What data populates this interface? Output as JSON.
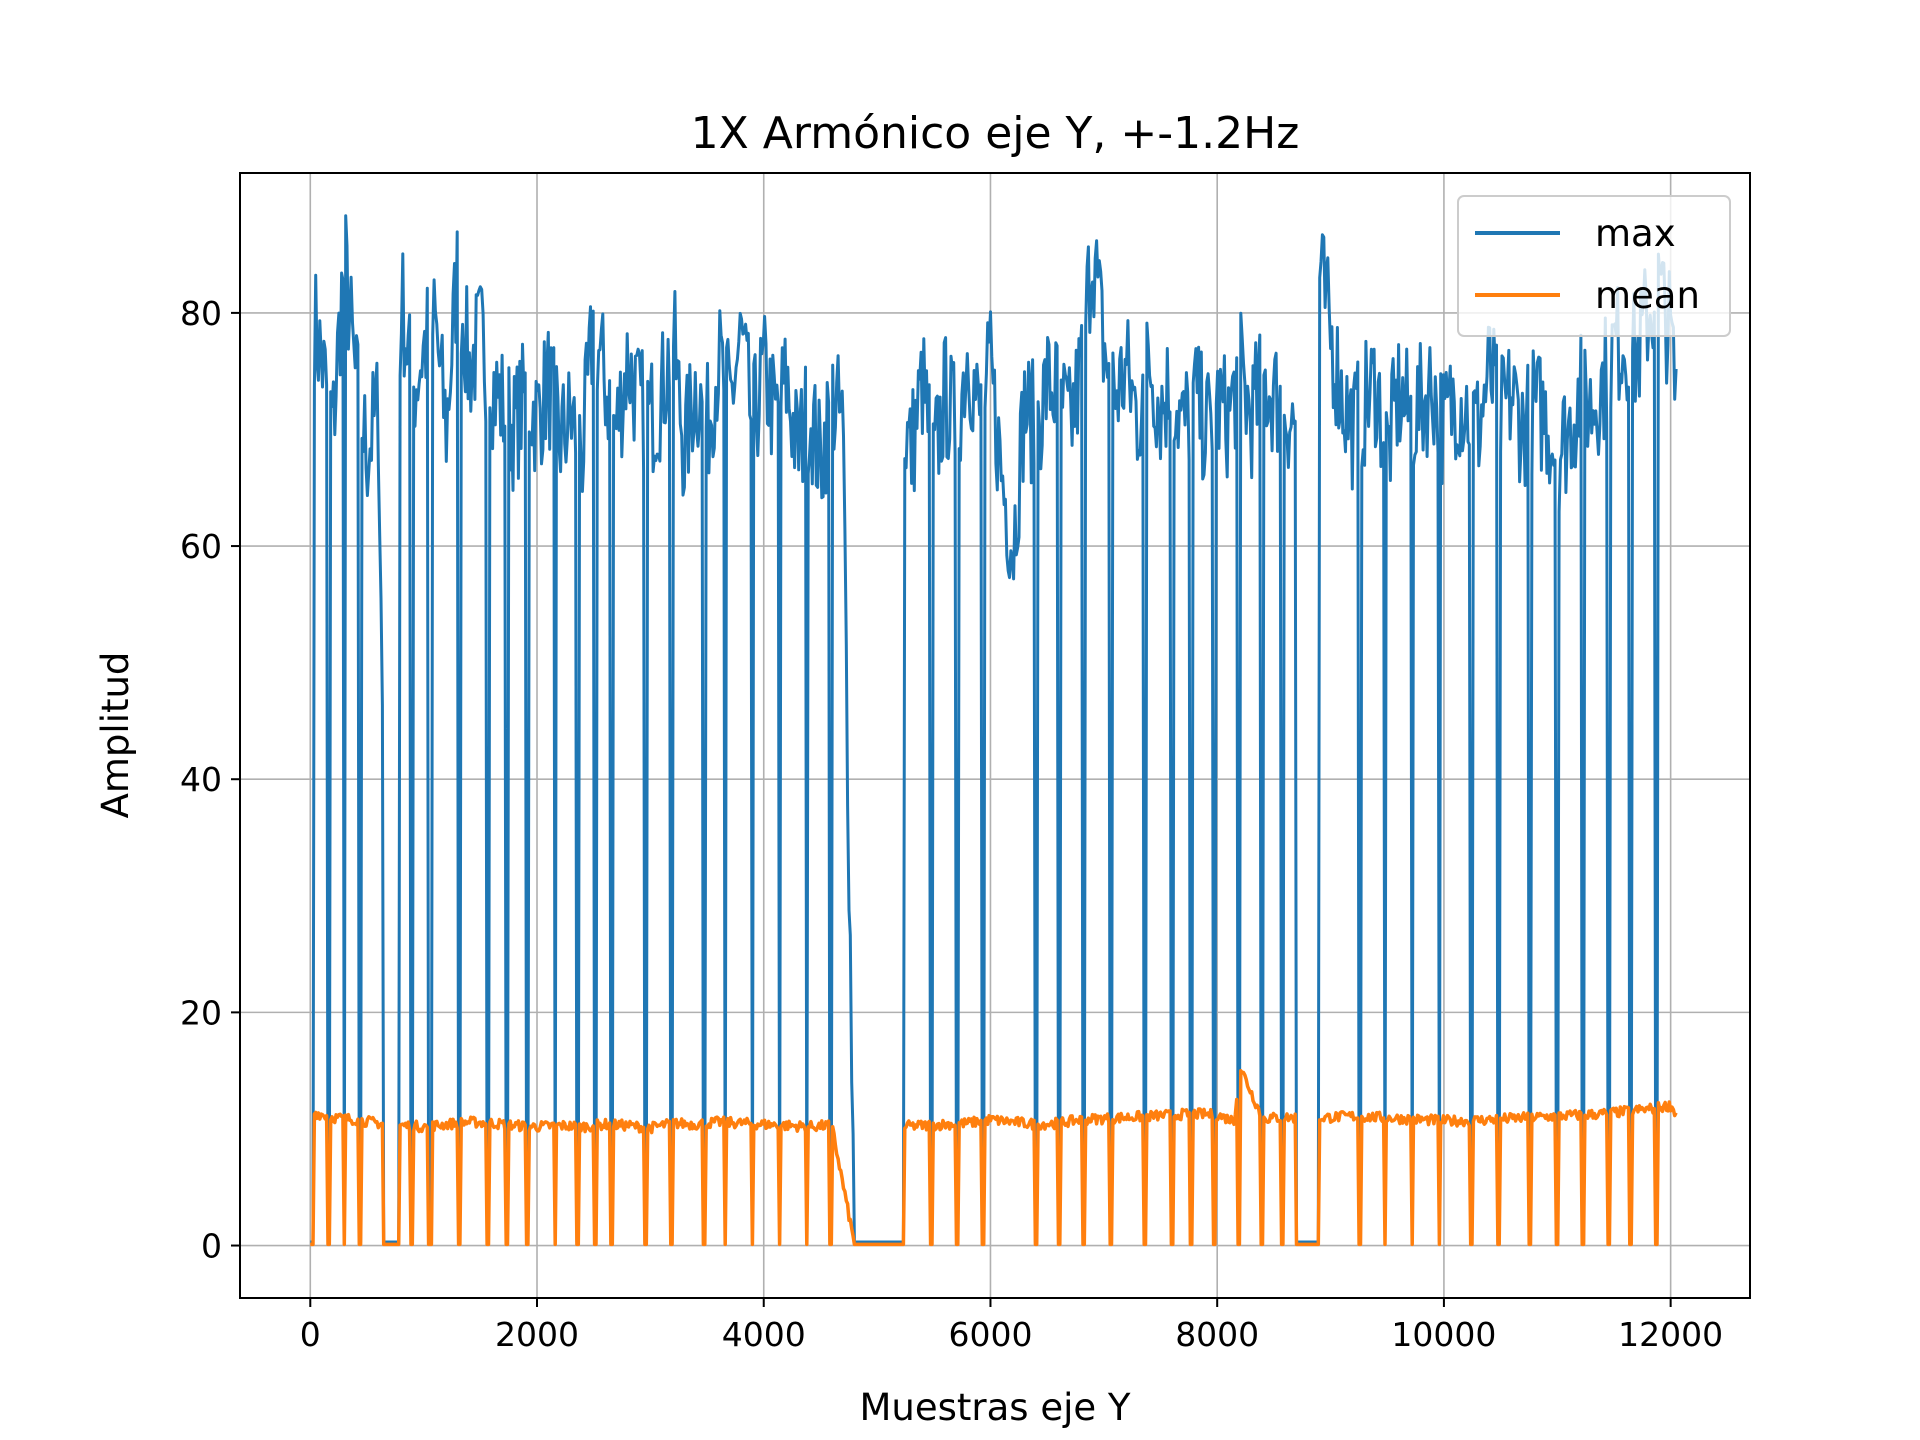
{
  "chart_data": {
    "type": "line",
    "title": "1X Armónico eje Y, +-1.2Hz",
    "xlabel": "Muestras eje Y",
    "ylabel": "Amplitud",
    "xlim": [
      -620,
      12700
    ],
    "ylim": [
      -4.5,
      92
    ],
    "xticks": [
      0,
      2000,
      4000,
      6000,
      8000,
      10000,
      12000
    ],
    "yticks": [
      0,
      20,
      40,
      60,
      80
    ],
    "grid": true,
    "legend": "top-right",
    "series": [
      {
        "name": "max",
        "color": "#1f77b4",
        "x": [
          0,
          100,
          200,
          300,
          400,
          500,
          600,
          700,
          800,
          900,
          1000,
          1100,
          1200,
          1300,
          1400,
          1500,
          1600,
          1700,
          1800,
          1900,
          2000,
          2100,
          2200,
          2300,
          2400,
          2500,
          2600,
          2700,
          2800,
          2900,
          3000,
          3100,
          3200,
          3300,
          3400,
          3500,
          3600,
          3700,
          3800,
          3900,
          4000,
          4100,
          4200,
          4300,
          4400,
          4500,
          4600,
          4700,
          4800,
          4900,
          5000,
          5100,
          5200,
          5300,
          5400,
          5500,
          5600,
          5700,
          5800,
          5900,
          6000,
          6100,
          6200,
          6300,
          6400,
          6500,
          6600,
          6700,
          6800,
          6900,
          7000,
          7100,
          7200,
          7300,
          7400,
          7500,
          7600,
          7700,
          7800,
          7900,
          8000,
          8100,
          8200,
          8300,
          8400,
          8500,
          8600,
          8700,
          8800,
          8900,
          9000,
          9100,
          9200,
          9300,
          9400,
          9500,
          9600,
          9700,
          9800,
          9900,
          10000,
          10100,
          10200,
          10300,
          10400,
          10500,
          10600,
          10700,
          10800,
          10900,
          11000,
          11100,
          11200,
          11300,
          11400,
          11500,
          11600,
          11700,
          11800,
          11900,
          12000,
          12050
        ],
        "values": [
          81,
          76,
          70,
          85,
          74,
          68,
          72,
          0.5,
          82,
          73,
          77,
          79,
          70,
          84,
          75,
          78,
          74,
          72,
          70,
          73,
          71,
          74,
          69,
          71,
          68,
          79,
          74,
          70,
          76,
          72,
          71,
          73,
          78,
          68,
          74,
          70,
          76,
          72,
          78,
          70,
          75,
          71,
          74,
          68,
          72,
          67,
          73,
          70,
          0.3,
          0.3,
          0.3,
          0.3,
          72,
          68,
          74,
          67,
          73,
          70,
          77,
          71,
          75,
          66,
          60,
          72,
          70,
          74,
          73,
          70,
          75,
          86,
          77,
          73,
          75,
          71,
          76,
          72,
          74,
          70,
          73,
          70,
          72,
          71,
          75,
          71,
          74,
          73,
          72,
          70,
          0.5,
          84,
          78,
          73,
          70,
          72,
          74,
          68,
          73,
          71,
          72,
          74,
          70,
          73,
          72,
          70,
          75,
          71,
          73,
          70,
          72,
          71,
          68,
          70,
          73,
          72,
          74,
          77,
          78,
          76,
          80,
          82,
          78,
          72
        ],
        "zero_runs": [
          [
            0,
            30
          ],
          [
            150,
            170
          ],
          [
            290,
            310
          ],
          [
            430,
            450
          ],
          [
            640,
            780
          ],
          [
            880,
            900
          ],
          [
            1040,
            1070
          ],
          [
            1300,
            1330
          ],
          [
            1550,
            1580
          ],
          [
            1720,
            1740
          ],
          [
            1900,
            1920
          ],
          [
            2150,
            2170
          ],
          [
            2350,
            2370
          ],
          [
            2500,
            2520
          ],
          [
            2650,
            2670
          ],
          [
            2950,
            2970
          ],
          [
            3180,
            3200
          ],
          [
            3460,
            3480
          ],
          [
            3650,
            3670
          ],
          [
            3890,
            3910
          ],
          [
            4130,
            4150
          ],
          [
            4370,
            4390
          ],
          [
            4580,
            4600
          ],
          [
            4790,
            5240
          ],
          [
            5470,
            5490
          ],
          [
            5700,
            5720
          ],
          [
            5920,
            5940
          ],
          [
            6390,
            6410
          ],
          [
            6600,
            6620
          ],
          [
            6810,
            6830
          ],
          [
            7050,
            7070
          ],
          [
            7350,
            7370
          ],
          [
            7590,
            7610
          ],
          [
            7760,
            7780
          ],
          [
            7960,
            7980
          ],
          [
            8180,
            8200
          ],
          [
            8380,
            8400
          ],
          [
            8560,
            8580
          ],
          [
            8700,
            8900
          ],
          [
            9250,
            9270
          ],
          [
            9470,
            9490
          ],
          [
            9710,
            9730
          ],
          [
            9950,
            9970
          ],
          [
            10230,
            10250
          ],
          [
            10470,
            10490
          ],
          [
            10750,
            10770
          ],
          [
            10990,
            11010
          ],
          [
            11220,
            11240
          ],
          [
            11440,
            11460
          ],
          [
            11640,
            11660
          ],
          [
            11860,
            11880
          ]
        ]
      },
      {
        "name": "mean",
        "color": "#ff7f0e",
        "x": [
          0,
          200,
          400,
          600,
          800,
          1000,
          1200,
          1400,
          1600,
          1800,
          2000,
          2200,
          2400,
          2600,
          2800,
          3000,
          3200,
          3400,
          3600,
          3800,
          4000,
          4200,
          4400,
          4600,
          4800,
          5000,
          5200,
          5400,
          5600,
          5800,
          6000,
          6200,
          6400,
          6600,
          6800,
          7000,
          7200,
          7400,
          7600,
          7800,
          8000,
          8150,
          8200,
          8400,
          8600,
          8800,
          9000,
          9200,
          9400,
          9600,
          9800,
          10000,
          10200,
          10400,
          10600,
          10800,
          11000,
          11200,
          11400,
          11600,
          11800,
          12000,
          12050
        ],
        "values": [
          11.5,
          11,
          10.8,
          10.5,
          10.3,
          10.2,
          10.4,
          10.6,
          10.5,
          10.3,
          10.2,
          10.3,
          10.2,
          10.4,
          10.3,
          10.1,
          10.5,
          10.4,
          10.6,
          10.5,
          10.4,
          10.3,
          10.2,
          10.3,
          0.1,
          0.1,
          10.2,
          10.3,
          10.4,
          10.5,
          10.8,
          10.6,
          10.4,
          10.5,
          10.8,
          10.9,
          11,
          11.1,
          11.2,
          11.3,
          11.2,
          10.7,
          15.4,
          10.9,
          11,
          10.9,
          11,
          11.1,
          11,
          10.9,
          10.8,
          10.7,
          10.7,
          10.8,
          10.9,
          11,
          11.1,
          11.2,
          11.3,
          11.5,
          11.7,
          12,
          11.3
        ]
      }
    ]
  }
}
